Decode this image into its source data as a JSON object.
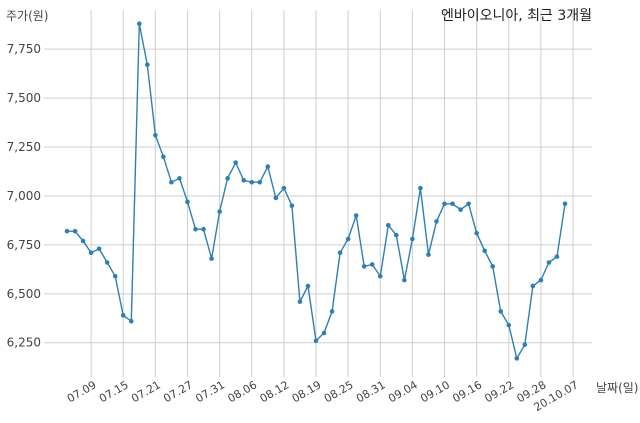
{
  "chart_data": {
    "type": "line",
    "title": "엔바이오니아, 최근 3개월",
    "ylabel": "주가(원)",
    "xlabel": "날짜(일)",
    "ylim": [
      6075,
      7950
    ],
    "yticks": [
      6250,
      6500,
      6750,
      7000,
      7250,
      7500,
      7750
    ],
    "ytick_labels": [
      "6,250",
      "6,500",
      "6,750",
      "7,000",
      "7,250",
      "7,500",
      "7,750"
    ],
    "xtick_labels": [
      "07.09",
      "07.15",
      "07.21",
      "07.27",
      "07.31",
      "08.06",
      "08.12",
      "08.19",
      "08.25",
      "08.31",
      "09.04",
      "09.10",
      "09.16",
      "09.22",
      "09.28",
      "20.10.07"
    ],
    "xtick_index": [
      3,
      7,
      11,
      15,
      19,
      23,
      27,
      31,
      35,
      39,
      43,
      47,
      51,
      55,
      59,
      63
    ],
    "grid": true,
    "line_color": "#2f7fb3",
    "series": [
      {
        "values": [
          6820,
          6820,
          6770,
          6710,
          6730,
          6660,
          6590,
          6390,
          6360,
          7880,
          7670,
          7310,
          7200,
          7070,
          7090,
          6970,
          6830,
          6830,
          6680,
          6920,
          7090,
          7170,
          7080,
          7070,
          7070,
          7150,
          6990,
          7040,
          6950,
          6460,
          6540,
          6260,
          6300,
          6410,
          6710,
          6780,
          6900,
          6640,
          6650,
          6590,
          6850,
          6800,
          6570,
          6780,
          7040,
          6700,
          6870,
          6960,
          6960,
          6930,
          6960,
          6810,
          6720,
          6640,
          6410,
          6340,
          6170,
          6240,
          6540,
          6570,
          6660,
          6690,
          6960
        ]
      }
    ]
  }
}
